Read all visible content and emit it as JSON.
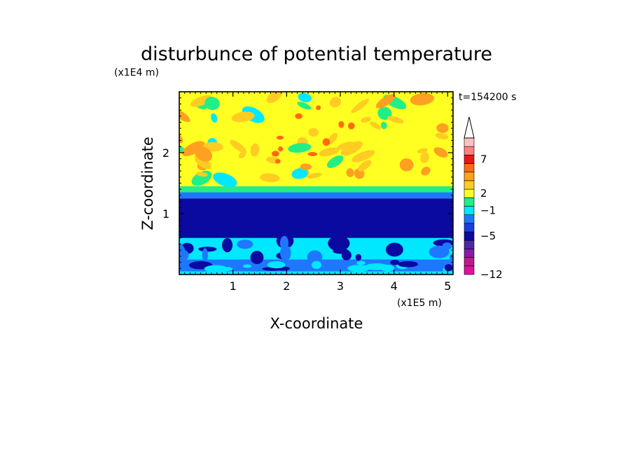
{
  "chart_data": {
    "type": "heatmap",
    "title": "disturbunce of potential temperature",
    "xlabel": "X-coordinate",
    "ylabel": "Z-coordinate",
    "x_unit": "(x1E5 m)",
    "y_unit": "(x1E4 m)",
    "time_label": "t=154200 s",
    "xlim": [
      0,
      5.1
    ],
    "ylim": [
      0,
      3.0
    ],
    "xticks": [
      1,
      2,
      3,
      4,
      5
    ],
    "yticks": [
      1,
      2
    ],
    "x_tick_labels": [
      "1",
      "2",
      "3",
      "4",
      "5"
    ],
    "y_tick_labels": [
      "1",
      "2"
    ],
    "colorbar": {
      "labels": [
        {
          "value": -12,
          "text": "−12"
        },
        {
          "value": -5,
          "text": "−5"
        },
        {
          "value": -1,
          "text": "−1"
        },
        {
          "value": 2,
          "text": "2"
        },
        {
          "value": 7,
          "text": "7"
        }
      ],
      "levels": [
        {
          "color": "#e0109e"
        },
        {
          "color": "#c0188e"
        },
        {
          "color": "#8a1aa8"
        },
        {
          "color": "#4b2aa8"
        },
        {
          "color": "#0a0aa0"
        },
        {
          "color": "#1a3fe0"
        },
        {
          "color": "#1e78ff"
        },
        {
          "color": "#00e8ff"
        },
        {
          "color": "#22ee88"
        },
        {
          "color": "#ffff22"
        },
        {
          "color": "#ffcc22"
        },
        {
          "color": "#ffa020"
        },
        {
          "color": "#ff6a10"
        },
        {
          "color": "#ee1414"
        },
        {
          "color": "#ff8080"
        },
        {
          "color": "#ffc0c0"
        }
      ],
      "extend": "max"
    },
    "field_layers": [
      {
        "z_range": [
          0.0,
          0.05
        ],
        "color": "#00e8ff"
      },
      {
        "z_range": [
          0.05,
          0.25
        ],
        "color": "#1e78ff"
      },
      {
        "z_range": [
          0.25,
          0.6
        ],
        "color": "#00e8ff"
      },
      {
        "z_range": [
          0.6,
          1.25
        ],
        "color": "#0a0aa0"
      },
      {
        "z_range": [
          1.25,
          1.35
        ],
        "color": "#1e78ff"
      },
      {
        "z_range": [
          1.35,
          1.45
        ],
        "color": "#22ee88"
      },
      {
        "z_range": [
          1.45,
          3.0
        ],
        "color": "#ffff22"
      }
    ]
  }
}
